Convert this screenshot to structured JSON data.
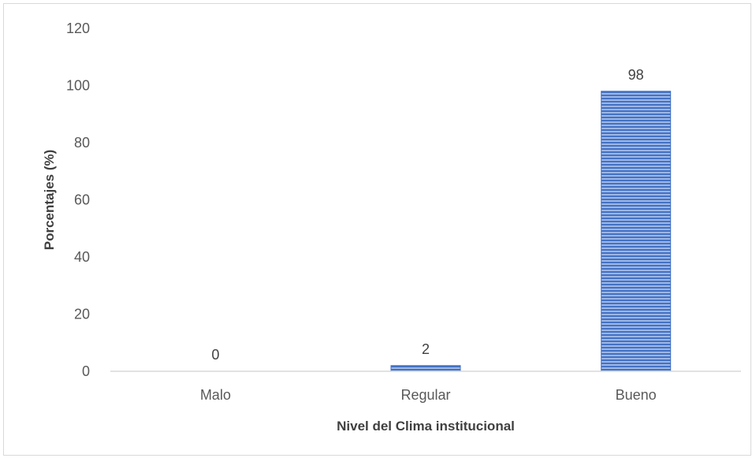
{
  "chart_data": {
    "type": "bar",
    "categories": [
      "Malo",
      "Regular",
      "Bueno"
    ],
    "values": [
      0,
      2,
      98
    ],
    "data_labels": [
      "0",
      "2",
      "98"
    ],
    "title": "",
    "xlabel": "Nivel del Clima institucional",
    "ylabel": "Porcentajes (%)",
    "ylim": [
      0,
      120
    ],
    "yticks": [
      "0",
      "20",
      "40",
      "60",
      "80",
      "100",
      "120"
    ],
    "grid": false,
    "legend": "none",
    "bar_color": "#4472c4",
    "bar_pattern": "horizontal-stripes"
  }
}
